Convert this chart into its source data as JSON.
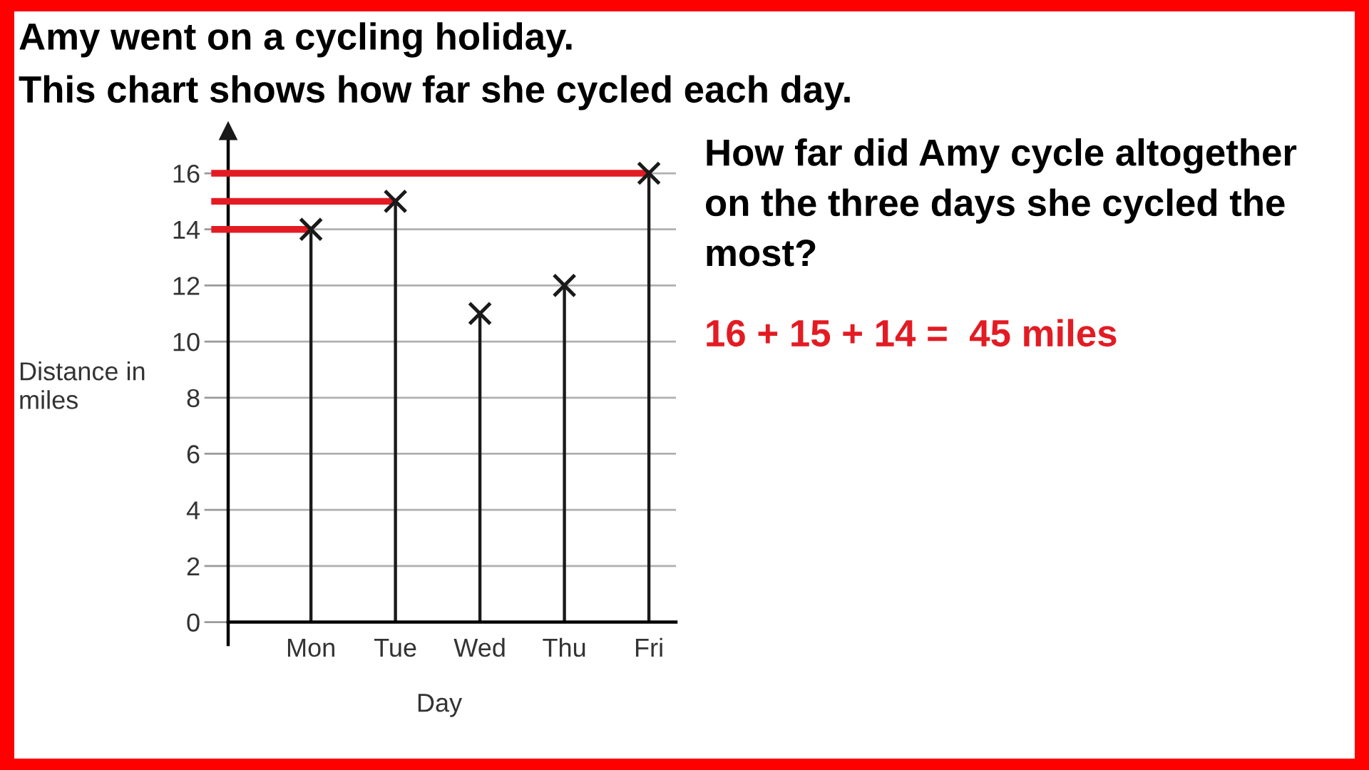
{
  "chart_data": {
    "type": "lollipop",
    "title": "Amy went on a cycling holiday.",
    "subtitle": "This chart shows how far she cycled each day.",
    "xlabel": "Day",
    "ylabel": "Distance in\nmiles",
    "categories": [
      "Mon",
      "Tue",
      "Wed",
      "Thu",
      "Fri"
    ],
    "values": [
      14,
      15,
      11,
      12,
      16
    ],
    "color": "#1a1a1a",
    "marker": "cross",
    "ylim": [
      -0.8,
      17.5
    ],
    "yticks": [
      0,
      2,
      4,
      6,
      8,
      10,
      12,
      14,
      16
    ],
    "grid": "y",
    "ref_lines": [
      {
        "axis": "y",
        "value": 16,
        "color": "#e31b23"
      },
      {
        "axis": "y",
        "value": 15,
        "color": "#e31b23"
      },
      {
        "axis": "y",
        "value": 14,
        "color": "#e31b23"
      }
    ],
    "annotations": [
      "How far did Amy cycle altogether\non the three days she cycled the\nmost?",
      "16 + 15 + 14 =  45 miles"
    ]
  }
}
